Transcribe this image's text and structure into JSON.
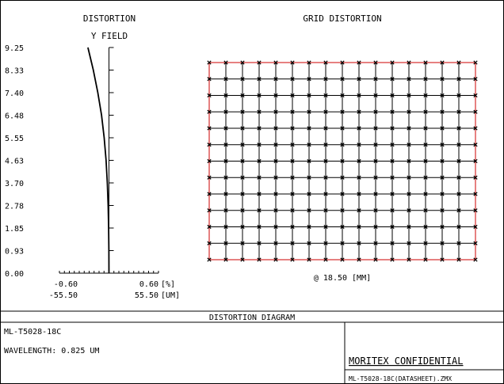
{
  "chart_data": [
    {
      "type": "line",
      "title": "DISTORTION",
      "subtitle": "Y FIELD",
      "x_percent_ticks": [
        "-0.60",
        "0.60"
      ],
      "x_percent_unit": "[%]",
      "x_um_ticks": [
        "-55.50",
        "55.50"
      ],
      "x_um_unit": "[UM]",
      "xlim": [
        -0.6,
        0.6
      ],
      "ylim": [
        0,
        9.25
      ],
      "y_ticks": [
        "9.25",
        "8.33",
        "7.40",
        "6.48",
        "5.55",
        "4.63",
        "3.70",
        "2.78",
        "1.85",
        "0.93",
        "0.00"
      ],
      "series": [
        {
          "y": [
            0,
            0.93,
            1.85,
            2.78,
            3.7,
            4.63,
            5.55,
            6.48,
            7.4,
            8.33,
            9.25
          ],
          "x": [
            0,
            -0.001,
            -0.004,
            -0.01,
            -0.02,
            -0.035,
            -0.058,
            -0.09,
            -0.135,
            -0.19,
            -0.255
          ]
        }
      ]
    },
    {
      "type": "grid",
      "title": "GRID DISTORTION",
      "field_label": "@ 18.50 [MM]",
      "grid_columns": 17,
      "grid_rows": 13,
      "colors": {
        "grid_lines": "#000000",
        "real_points": "#000000",
        "outline": "#cc0000"
      }
    }
  ],
  "footer": {
    "diagram_title": "DISTORTION DIAGRAM",
    "lens_name": "ML-T5028-18C",
    "wavelength": "WAVELENGTH: 0.825 UM",
    "confidential": "MORITEX CONFIDENTIAL",
    "filename": "ML-T5028-18C(DATASHEET).ZMX"
  }
}
